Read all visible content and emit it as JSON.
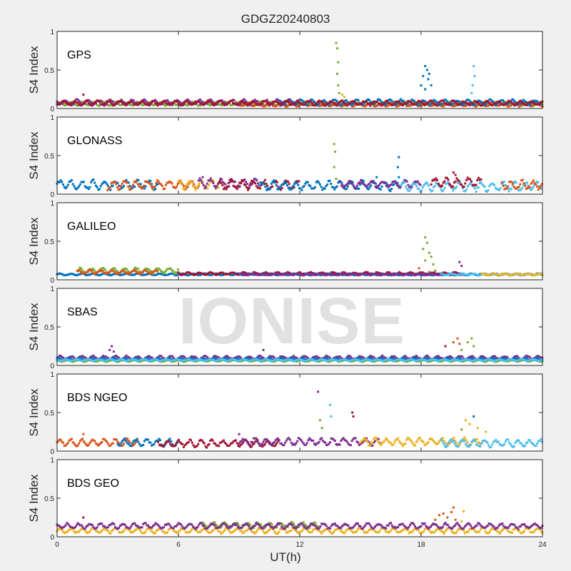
{
  "chart_data": {
    "type": "scatter",
    "title": "GDGZ20240803",
    "xlabel": "UT(h)",
    "ylabel": "S4 Index",
    "xlim": [
      0,
      24
    ],
    "ylim": [
      0,
      1
    ],
    "xticks": [
      "0",
      "6",
      "12",
      "18",
      "24"
    ],
    "yticks": [
      "0",
      "0.5",
      "1"
    ],
    "watermark": "IONISE",
    "colors": [
      "#0072BD",
      "#D95319",
      "#EDB120",
      "#7E2F8E",
      "#77AC30",
      "#4DBEEE",
      "#A2142F"
    ],
    "panels": [
      {
        "label": "GPS",
        "series": [
          {
            "color": 4,
            "x": [
              0,
              24
            ],
            "level": 0.06,
            "amp": 0.02
          },
          {
            "color": 1,
            "x": [
              9,
              24
            ],
            "level": 0.05,
            "amp": 0.02
          },
          {
            "color": 0,
            "x": [
              11,
              24
            ],
            "level": 0.08,
            "amp": 0.03
          },
          {
            "color": 3,
            "x": [
              0,
              12
            ],
            "level": 0.08,
            "amp": 0.03
          },
          {
            "color": 6,
            "x": [
              0,
              24
            ],
            "level": 0.07,
            "amp": 0.025
          }
        ],
        "points": [
          [
            13.8,
            0.85,
            4
          ],
          [
            13.85,
            0.78,
            4
          ],
          [
            13.9,
            0.6,
            4
          ],
          [
            13.85,
            0.45,
            4
          ],
          [
            13.9,
            0.3,
            4
          ],
          [
            13.95,
            0.2,
            4
          ],
          [
            14.1,
            0.18,
            2
          ],
          [
            14.2,
            0.15,
            2
          ],
          [
            18.0,
            0.3,
            0
          ],
          [
            18.1,
            0.42,
            0
          ],
          [
            18.2,
            0.55,
            0
          ],
          [
            18.3,
            0.5,
            0
          ],
          [
            18.35,
            0.38,
            0
          ],
          [
            18.4,
            0.45,
            0
          ],
          [
            18.5,
            0.3,
            0
          ],
          [
            18.2,
            0.25,
            0
          ],
          [
            20.6,
            0.55,
            5
          ],
          [
            20.65,
            0.42,
            5
          ],
          [
            20.55,
            0.3,
            5
          ],
          [
            20.5,
            0.2,
            5
          ],
          [
            1.3,
            0.18,
            6
          ]
        ]
      },
      {
        "label": "GLONASS",
        "series": [
          {
            "color": 0,
            "x": [
              0,
              5
            ],
            "level": 0.12,
            "amp": 0.05
          },
          {
            "color": 1,
            "x": [
              2.5,
              7
            ],
            "level": 0.12,
            "amp": 0.05
          },
          {
            "color": 2,
            "x": [
              6,
              8
            ],
            "level": 0.12,
            "amp": 0.05
          },
          {
            "color": 3,
            "x": [
              7,
              10
            ],
            "level": 0.14,
            "amp": 0.05
          },
          {
            "color": 6,
            "x": [
              8,
              12
            ],
            "level": 0.12,
            "amp": 0.05
          },
          {
            "color": 0,
            "x": [
              10,
              17
            ],
            "level": 0.11,
            "amp": 0.05
          },
          {
            "color": 3,
            "x": [
              14,
              18
            ],
            "level": 0.13,
            "amp": 0.04
          },
          {
            "color": 5,
            "x": [
              17,
              24
            ],
            "level": 0.1,
            "amp": 0.05
          },
          {
            "color": 6,
            "x": [
              18.5,
              21
            ],
            "level": 0.15,
            "amp": 0.05
          },
          {
            "color": 1,
            "x": [
              22,
              24
            ],
            "level": 0.12,
            "amp": 0.05
          }
        ],
        "points": [
          [
            13.7,
            0.65,
            4
          ],
          [
            13.75,
            0.55,
            4
          ],
          [
            13.7,
            0.35,
            4
          ],
          [
            13.8,
            0.2,
            4
          ],
          [
            16.9,
            0.48,
            0
          ],
          [
            16.85,
            0.35,
            0
          ],
          [
            16.9,
            0.22,
            0
          ],
          [
            15.8,
            0.22,
            0
          ],
          [
            19.6,
            0.28,
            6
          ],
          [
            19.7,
            0.25,
            6
          ],
          [
            7.2,
            0.22,
            3
          ]
        ]
      },
      {
        "label": "GALILEO",
        "series": [
          {
            "color": 0,
            "x": [
              0,
              24
            ],
            "level": 0.07,
            "amp": 0.01
          },
          {
            "color": 4,
            "x": [
              1,
              6
            ],
            "level": 0.12,
            "amp": 0.03
          },
          {
            "color": 1,
            "x": [
              1,
              5
            ],
            "level": 0.1,
            "amp": 0.02
          },
          {
            "color": 6,
            "x": [
              6,
              20
            ],
            "level": 0.08,
            "amp": 0.015
          },
          {
            "color": 3,
            "x": [
              9,
              19
            ],
            "level": 0.07,
            "amp": 0.01
          },
          {
            "color": 5,
            "x": [
              19,
              24
            ],
            "level": 0.07,
            "amp": 0.01
          },
          {
            "color": 2,
            "x": [
              21,
              24
            ],
            "level": 0.07,
            "amp": 0.01
          }
        ],
        "points": [
          [
            18.2,
            0.55,
            4
          ],
          [
            18.3,
            0.48,
            4
          ],
          [
            18.1,
            0.4,
            4
          ],
          [
            18.4,
            0.35,
            4
          ],
          [
            18.5,
            0.3,
            4
          ],
          [
            18.2,
            0.25,
            4
          ],
          [
            18.6,
            0.2,
            4
          ],
          [
            18.7,
            0.12,
            4
          ],
          [
            19.9,
            0.23,
            3
          ],
          [
            20.0,
            0.18,
            3
          ],
          [
            17.9,
            0.15,
            1
          ],
          [
            18.4,
            0.1,
            1
          ]
        ]
      },
      {
        "label": "SBAS",
        "series": [
          {
            "color": 3,
            "x": [
              0,
              24
            ],
            "level": 0.1,
            "amp": 0.02
          },
          {
            "color": 0,
            "x": [
              0,
              24
            ],
            "level": 0.08,
            "amp": 0.015
          },
          {
            "color": 4,
            "x": [
              0,
              24
            ],
            "level": 0.06,
            "amp": 0.01
          },
          {
            "color": 5,
            "x": [
              0,
              24
            ],
            "level": 0.07,
            "amp": 0.01
          }
        ],
        "points": [
          [
            2.7,
            0.25,
            3
          ],
          [
            2.6,
            0.2,
            3
          ],
          [
            2.8,
            0.18,
            3
          ],
          [
            10.2,
            0.2,
            3
          ],
          [
            19.6,
            0.3,
            1
          ],
          [
            19.8,
            0.35,
            1
          ],
          [
            19.9,
            0.28,
            1
          ],
          [
            20.0,
            0.2,
            4
          ],
          [
            20.3,
            0.3,
            4
          ],
          [
            20.5,
            0.35,
            4
          ],
          [
            20.6,
            0.25,
            4
          ],
          [
            19.2,
            0.25,
            6
          ]
        ]
      },
      {
        "label": "BDS NGEO",
        "series": [
          {
            "color": 1,
            "x": [
              0,
              4
            ],
            "level": 0.11,
            "amp": 0.04
          },
          {
            "color": 0,
            "x": [
              3,
              6
            ],
            "level": 0.11,
            "amp": 0.04
          },
          {
            "color": 6,
            "x": [
              5,
              11
            ],
            "level": 0.1,
            "amp": 0.04
          },
          {
            "color": 3,
            "x": [
              9,
              16
            ],
            "level": 0.12,
            "amp": 0.04
          },
          {
            "color": 2,
            "x": [
              15,
              21
            ],
            "level": 0.12,
            "amp": 0.04
          },
          {
            "color": 5,
            "x": [
              19,
              24
            ],
            "level": 0.1,
            "amp": 0.04
          }
        ],
        "points": [
          [
            12.9,
            0.77,
            3
          ],
          [
            13.5,
            0.6,
            5
          ],
          [
            13.55,
            0.45,
            5
          ],
          [
            13.0,
            0.4,
            4
          ],
          [
            13.1,
            0.3,
            4
          ],
          [
            14.6,
            0.5,
            6
          ],
          [
            14.65,
            0.45,
            6
          ],
          [
            1.3,
            0.22,
            1
          ],
          [
            9.0,
            0.22,
            3
          ],
          [
            20.2,
            0.4,
            2
          ],
          [
            20.4,
            0.35,
            2
          ],
          [
            20.6,
            0.45,
            0
          ],
          [
            20.8,
            0.3,
            2
          ],
          [
            21.2,
            0.25,
            2
          ],
          [
            20.0,
            0.28,
            4
          ]
        ]
      },
      {
        "label": "BDS GEO",
        "series": [
          {
            "color": 2,
            "x": [
              0,
              24
            ],
            "level": 0.08,
            "amp": 0.03
          },
          {
            "color": 4,
            "x": [
              7.2,
              13
            ],
            "level": 0.15,
            "amp": 0.03
          },
          {
            "color": 3,
            "x": [
              0,
              24
            ],
            "level": 0.14,
            "amp": 0.03
          }
        ],
        "points": [
          [
            1.3,
            0.25,
            6
          ],
          [
            18.7,
            0.22,
            1
          ],
          [
            18.9,
            0.28,
            1
          ],
          [
            19.1,
            0.3,
            1
          ],
          [
            19.3,
            0.25,
            1
          ],
          [
            19.5,
            0.32,
            1
          ],
          [
            19.6,
            0.38,
            1
          ],
          [
            19.7,
            0.22,
            1
          ],
          [
            20.1,
            0.33,
            2
          ],
          [
            20.0,
            0.2,
            2
          ]
        ]
      }
    ]
  }
}
